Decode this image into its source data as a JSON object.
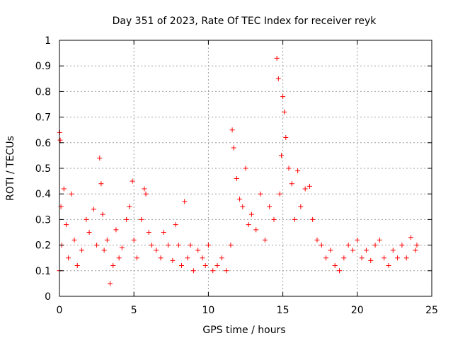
{
  "chart_data": {
    "type": "scatter",
    "title": "Day 351 of 2023, Rate Of TEC Index for receiver reyk",
    "xlabel": "GPS time / hours",
    "ylabel": "ROTI / TECUs",
    "xlim": [
      0,
      25
    ],
    "ylim": [
      0,
      1
    ],
    "x_ticks": [
      0,
      5,
      10,
      15,
      20,
      25
    ],
    "x_tick_labels": [
      "0",
      "5",
      "10",
      "15",
      "20",
      "25"
    ],
    "y_ticks": [
      0,
      0.1,
      0.2,
      0.3,
      0.4,
      0.5,
      0.6,
      0.7,
      0.8,
      0.9,
      1
    ],
    "y_tick_labels": [
      "0",
      "0.1",
      "0.2",
      "0.3",
      "0.4",
      "0.5",
      "0.6",
      "0.7",
      "0.8",
      "0.9",
      "1"
    ],
    "grid": true,
    "marker": "plus",
    "series": [
      {
        "name": "ROTI",
        "color": "#ff0000",
        "x": [
          0.0,
          0.02,
          0.05,
          0.1,
          0.15,
          0.3,
          0.45,
          0.6,
          0.8,
          1.0,
          1.2,
          1.5,
          1.8,
          2.0,
          2.3,
          2.5,
          2.7,
          2.8,
          2.9,
          3.0,
          3.2,
          3.4,
          3.6,
          3.8,
          4.0,
          4.2,
          4.5,
          4.7,
          4.9,
          5.0,
          5.2,
          5.5,
          5.7,
          5.8,
          6.0,
          6.2,
          6.5,
          6.8,
          7.0,
          7.3,
          7.6,
          7.8,
          8.0,
          8.2,
          8.4,
          8.6,
          8.8,
          9.0,
          9.3,
          9.6,
          9.8,
          10.0,
          10.3,
          10.6,
          10.9,
          11.2,
          11.5,
          11.6,
          11.7,
          11.9,
          12.1,
          12.3,
          12.5,
          12.7,
          12.9,
          13.2,
          13.5,
          13.8,
          14.1,
          14.4,
          14.6,
          14.7,
          14.8,
          14.9,
          15.0,
          15.1,
          15.2,
          15.4,
          15.6,
          15.8,
          16.0,
          16.2,
          16.5,
          16.8,
          17.0,
          17.3,
          17.6,
          17.9,
          18.2,
          18.5,
          18.8,
          19.1,
          19.4,
          19.7,
          20.0,
          20.3,
          20.6,
          20.9,
          21.2,
          21.5,
          21.8,
          22.1,
          22.4,
          22.7,
          23.0,
          23.3,
          23.6,
          23.9,
          24.0
        ],
        "y": [
          0.1,
          0.64,
          0.61,
          0.35,
          0.2,
          0.42,
          0.28,
          0.15,
          0.4,
          0.22,
          0.12,
          0.18,
          0.3,
          0.25,
          0.34,
          0.2,
          0.54,
          0.44,
          0.32,
          0.18,
          0.22,
          0.05,
          0.12,
          0.26,
          0.15,
          0.19,
          0.3,
          0.35,
          0.45,
          0.22,
          0.15,
          0.3,
          0.42,
          0.4,
          0.25,
          0.2,
          0.18,
          0.15,
          0.25,
          0.2,
          0.14,
          0.28,
          0.2,
          0.12,
          0.37,
          0.15,
          0.2,
          0.1,
          0.18,
          0.15,
          0.12,
          0.2,
          0.1,
          0.12,
          0.15,
          0.1,
          0.2,
          0.65,
          0.58,
          0.46,
          0.38,
          0.35,
          0.5,
          0.28,
          0.32,
          0.26,
          0.4,
          0.22,
          0.35,
          0.3,
          0.93,
          0.85,
          0.4,
          0.55,
          0.78,
          0.72,
          0.62,
          0.5,
          0.44,
          0.3,
          0.49,
          0.35,
          0.42,
          0.43,
          0.3,
          0.22,
          0.2,
          0.15,
          0.18,
          0.12,
          0.1,
          0.15,
          0.2,
          0.18,
          0.22,
          0.15,
          0.18,
          0.14,
          0.2,
          0.22,
          0.15,
          0.12,
          0.18,
          0.15,
          0.2,
          0.15,
          0.23,
          0.18,
          0.2
        ]
      }
    ]
  }
}
